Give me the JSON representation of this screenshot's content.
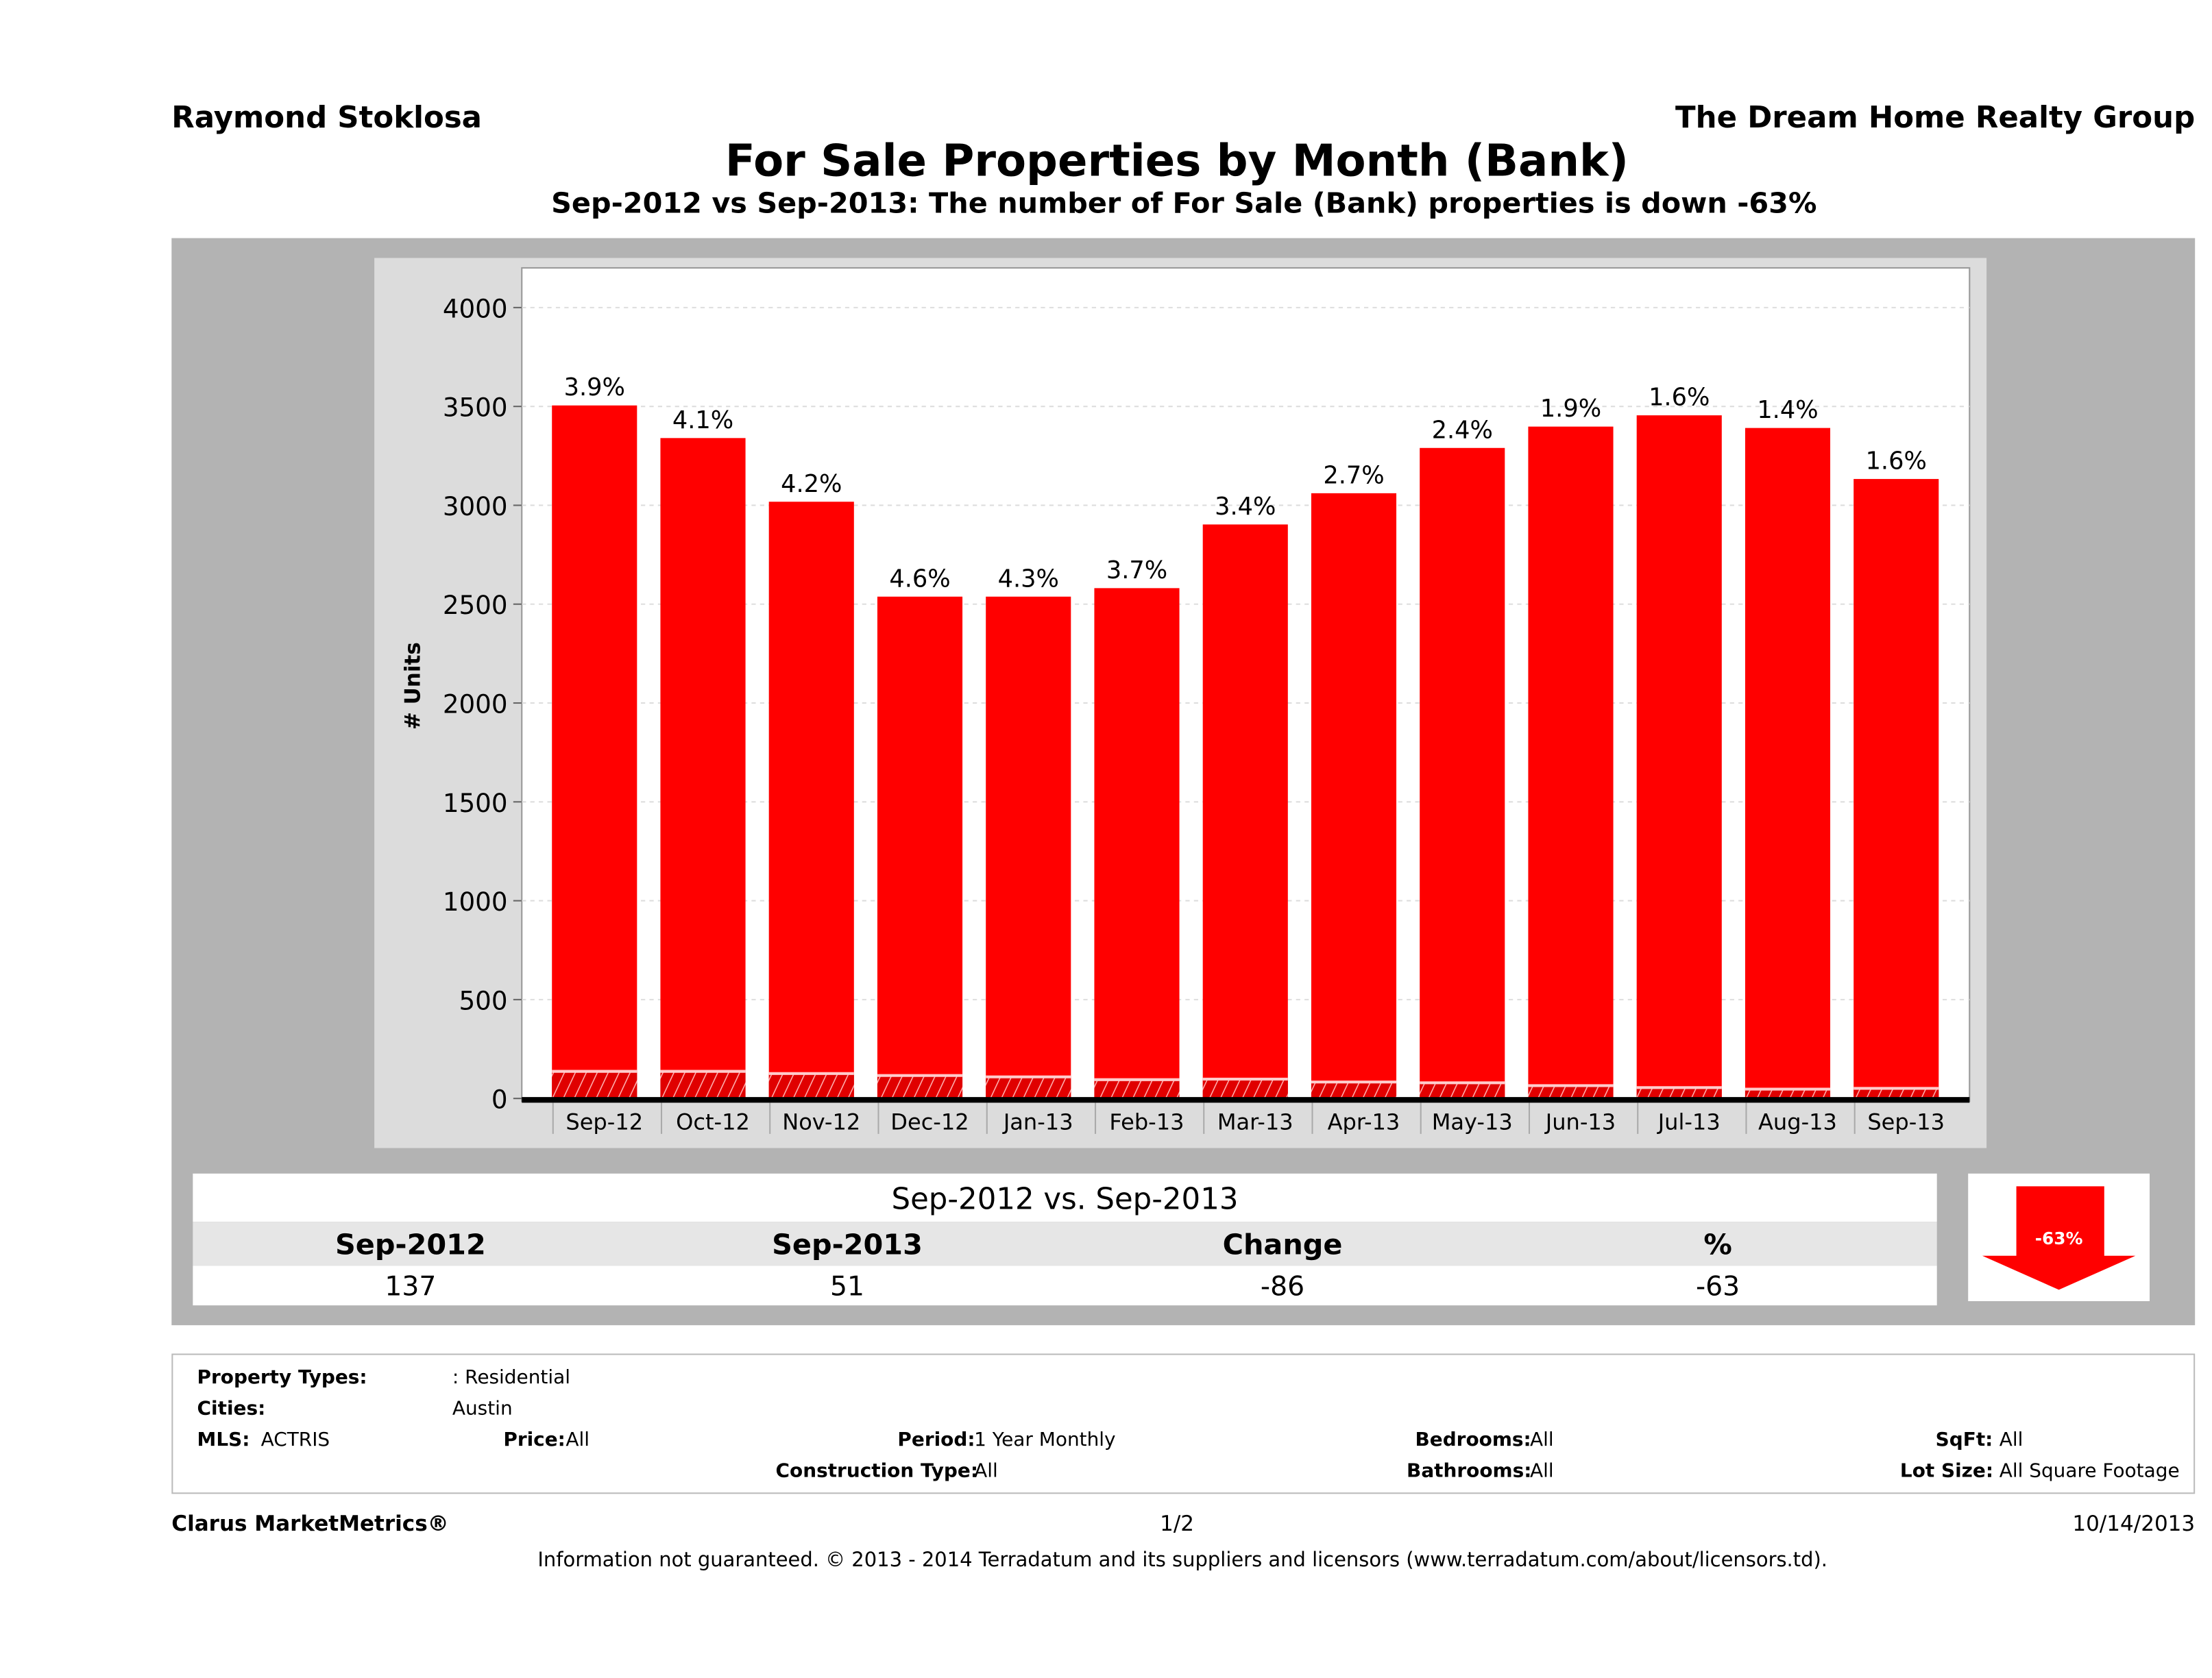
{
  "header": {
    "agent": "Raymond Stoklosa",
    "company": "The Dream Home Realty Group",
    "title": "For Sale Properties by Month (Bank)",
    "subtitle": "Sep-2012 vs Sep-2013: The number of For Sale (Bank)  properties is down -63%"
  },
  "chart_data": {
    "type": "bar",
    "ylabel": "# Units",
    "ylim": [
      0,
      4000
    ],
    "yticks": [
      "0",
      "500",
      "1000",
      "1500",
      "2000",
      "2500",
      "3000",
      "3500",
      "4000"
    ],
    "grid": true,
    "categories": [
      "Sep-12",
      "Oct-12",
      "Nov-12",
      "Dec-12",
      "Jan-13",
      "Feb-13",
      "Mar-13",
      "Apr-13",
      "May-13",
      "Jun-13",
      "Jul-13",
      "Aug-13",
      "Sep-13"
    ],
    "series": [
      {
        "values": [
          3505,
          3340,
          3018,
          2538,
          2538,
          2581,
          2903,
          3061,
          3290,
          3398,
          3455,
          3391,
          3133
        ]
      },
      {
        "values": [
          137,
          137,
          126,
          116,
          109,
          95,
          98,
          83,
          79,
          65,
          55,
          47,
          51
        ],
        "style": "hatched"
      }
    ],
    "data_labels": [
      "3.9%",
      "4.1%",
      "4.2%",
      "4.6%",
      "4.3%",
      "3.7%",
      "3.4%",
      "2.7%",
      "2.4%",
      "1.9%",
      "1.6%",
      "1.4%",
      "1.6%"
    ],
    "colors": {
      "bar": "#ff0000",
      "hatched": "#e00000"
    }
  },
  "comparison": {
    "title": "Sep-2012 vs. Sep-2013",
    "headers": [
      "Sep-2012",
      "Sep-2013",
      "Change",
      "%"
    ],
    "values": [
      "137",
      "51",
      "-86",
      "-63"
    ],
    "badge": "-63%",
    "badge_icon": "down-arrow-icon",
    "badge_color": "#ff0000"
  },
  "filters": {
    "property_types_label": "Property Types:",
    "property_types": ": Residential",
    "cities_label": "Cities:",
    "cities": "Austin",
    "mls_label": "MLS:",
    "mls": "ACTRIS",
    "price_label": "Price:",
    "price": "All",
    "period_label": "Period:",
    "period": "1 Year Monthly",
    "construction_label": "Construction Type:",
    "construction": "All",
    "bedrooms_label": "Bedrooms:",
    "bedrooms": "All",
    "bathrooms_label": "Bathrooms:",
    "bathrooms": "All",
    "sqft_label": "SqFt:",
    "sqft": "All",
    "lot_label": "Lot Size:",
    "lot": "All Square Footage"
  },
  "footer": {
    "brand": "Clarus MarketMetrics®",
    "page": "1/2",
    "date": "10/14/2013",
    "disclaimer": "Information not guaranteed. © 2013 - 2014 Terradatum and its suppliers and licensors (www.terradatum.com/about/licensors.td)."
  }
}
